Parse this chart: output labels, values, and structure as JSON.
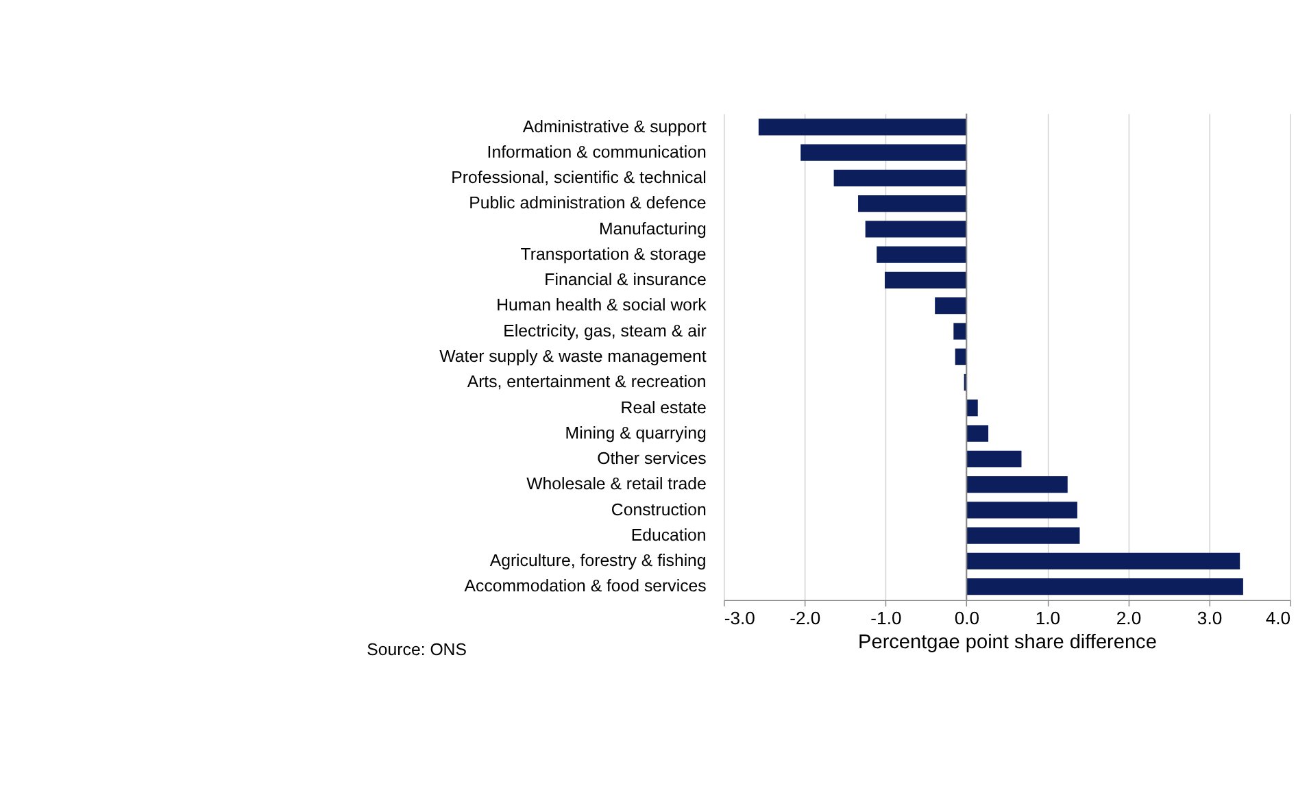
{
  "chart_data": {
    "type": "bar",
    "orientation": "horizontal",
    "categories": [
      "Administrative & support",
      "Information & communication",
      "Professional, scientific & technical",
      "Public administration & defence",
      "Manufacturing",
      "Transportation & storage",
      "Financial & insurance",
      "Human health & social work",
      "Electricity, gas, steam & air",
      "Water supply & waste management",
      "Arts, entertainment & recreation",
      "Real estate",
      "Mining & quarrying",
      "Other services",
      "Wholesale & retail trade",
      "Construction",
      "Education",
      "Agriculture, forestry & fishing",
      "Accommodation & food services"
    ],
    "values": [
      -2.57,
      -2.05,
      -1.64,
      -1.34,
      -1.25,
      -1.11,
      -1.01,
      -0.39,
      -0.16,
      -0.14,
      -0.03,
      0.14,
      0.27,
      0.68,
      1.25,
      1.37,
      1.4,
      3.38,
      3.42
    ],
    "color": "#0c1f5c",
    "xlabel": "Percentgae point share difference",
    "xlim": [
      -3.0,
      4.0
    ],
    "xticks": [
      {
        "value": -3,
        "label": "-3.0"
      },
      {
        "value": -2,
        "label": "-2.0"
      },
      {
        "value": -1,
        "label": "-1.0"
      },
      {
        "value": 0,
        "label": "0.0"
      },
      {
        "value": 1,
        "label": "1.0"
      },
      {
        "value": 2,
        "label": "2.0"
      },
      {
        "value": 3,
        "label": "3.0"
      },
      {
        "value": 4,
        "label": "4.0"
      }
    ],
    "grid": "x",
    "annotations": [
      "Source: ONS"
    ]
  }
}
